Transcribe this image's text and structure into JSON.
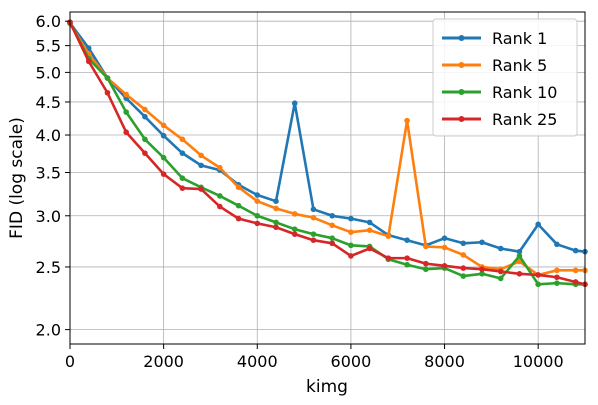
{
  "chart_data": {
    "type": "line",
    "title": "",
    "xlabel": "kimg",
    "ylabel": "FID (log scale)",
    "xlim": [
      0,
      11000
    ],
    "ylim": [
      1.9,
      6.2
    ],
    "y_scale": "log",
    "grid": true,
    "legend_position": "top-right",
    "xticks": [
      0,
      2000,
      4000,
      6000,
      8000,
      10000
    ],
    "xtick_labels": [
      "0",
      "2000",
      "4000",
      "6000",
      "8000",
      "10000"
    ],
    "yticks": [
      2.0,
      2.5,
      3.0,
      3.5,
      4.0,
      4.5,
      5.0,
      5.5,
      6.0
    ],
    "ytick_labels": [
      "2.0",
      "2.5",
      "3.0",
      "3.5",
      "4.0",
      "4.5",
      "5.0",
      "5.5",
      "6.0"
    ],
    "series": [
      {
        "name": "Rank 1",
        "color": "#1f77b4",
        "x": [
          0,
          400,
          800,
          1200,
          1600,
          2000,
          2400,
          2800,
          3200,
          3600,
          4000,
          4400,
          4800,
          5200,
          5600,
          6000,
          6400,
          6800,
          7200,
          7600,
          8000,
          8400,
          8800,
          9200,
          9600,
          10000,
          10400,
          10800,
          11000
        ],
        "values": [
          5.96,
          5.45,
          4.9,
          4.56,
          4.27,
          3.99,
          3.75,
          3.59,
          3.53,
          3.35,
          3.23,
          3.16,
          4.48,
          3.07,
          3.0,
          2.97,
          2.93,
          2.8,
          2.75,
          2.7,
          2.77,
          2.72,
          2.73,
          2.67,
          2.64,
          2.91,
          2.71,
          2.65,
          2.64
        ]
      },
      {
        "name": "Rank 5",
        "color": "#ff7f0e",
        "x": [
          0,
          400,
          800,
          1200,
          1600,
          2000,
          2400,
          2800,
          3200,
          3600,
          4000,
          4400,
          4800,
          5200,
          5600,
          6000,
          6400,
          6800,
          7200,
          7600,
          8000,
          8400,
          8800,
          9200,
          9600,
          10000,
          10400,
          10800,
          11000
        ],
        "values": [
          5.95,
          5.34,
          4.9,
          4.62,
          4.38,
          4.14,
          3.94,
          3.72,
          3.56,
          3.32,
          3.16,
          3.08,
          3.02,
          2.98,
          2.9,
          2.83,
          2.85,
          2.79,
          4.21,
          2.69,
          2.68,
          2.61,
          2.5,
          2.48,
          2.55,
          2.43,
          2.47,
          2.47,
          2.47
        ]
      },
      {
        "name": "Rank 10",
        "color": "#2ca02c",
        "x": [
          0,
          400,
          800,
          1200,
          1600,
          2000,
          2400,
          2800,
          3200,
          3600,
          4000,
          4400,
          4800,
          5200,
          5600,
          6000,
          6400,
          6800,
          7200,
          7600,
          8000,
          8400,
          8800,
          9200,
          9600,
          10000,
          10400,
          10800,
          11000
        ],
        "values": [
          5.97,
          5.25,
          4.9,
          4.34,
          3.94,
          3.69,
          3.43,
          3.32,
          3.22,
          3.11,
          3.0,
          2.93,
          2.86,
          2.81,
          2.77,
          2.7,
          2.69,
          2.57,
          2.52,
          2.48,
          2.49,
          2.42,
          2.44,
          2.4,
          2.6,
          2.35,
          2.36,
          2.35,
          2.35
        ]
      },
      {
        "name": "Rank 25",
        "color": "#d62728",
        "x": [
          0,
          400,
          800,
          1200,
          1600,
          2000,
          2400,
          2800,
          3200,
          3600,
          4000,
          4400,
          4800,
          5200,
          5600,
          6000,
          6400,
          6800,
          7200,
          7600,
          8000,
          8400,
          8800,
          9200,
          9600,
          10000,
          10400,
          10800,
          11000
        ],
        "values": [
          5.98,
          5.2,
          4.65,
          4.04,
          3.75,
          3.48,
          3.31,
          3.3,
          3.1,
          2.97,
          2.92,
          2.88,
          2.81,
          2.75,
          2.72,
          2.6,
          2.67,
          2.58,
          2.58,
          2.53,
          2.51,
          2.49,
          2.48,
          2.46,
          2.44,
          2.43,
          2.41,
          2.37,
          2.35
        ]
      }
    ]
  }
}
